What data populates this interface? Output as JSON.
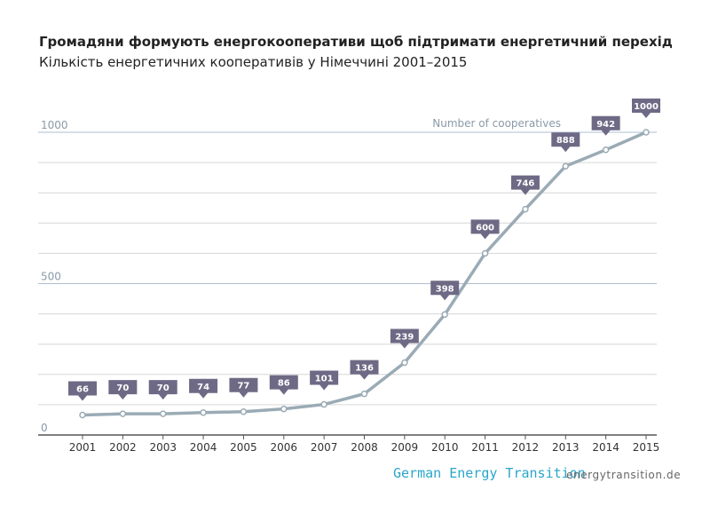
{
  "header": {
    "title": "Громадяни формують енергокооперативи щоб підтримати енергетичний перехід",
    "subtitle": "Кількість енергетичних кооперативів у Німеччині 2001–2015"
  },
  "footer": {
    "brand": "German Energy Transition",
    "site": "energytransition.de"
  },
  "colors": {
    "line": "#9aabb5",
    "label_bg": "#6e6a85",
    "major_grid": "#aebfd0",
    "minor_grid": "#d6d6d6",
    "axis_text": "#8a9aa8"
  },
  "chart_data": {
    "type": "line",
    "title": "Громадяни формують енергокооперативи щоб підтримати енергетичний перехід",
    "subtitle": "Кількість енергетичних кооперативів у Німеччині 2001–2015",
    "categories": [
      "2001",
      "2002",
      "2003",
      "2004",
      "2005",
      "2006",
      "2007",
      "2008",
      "2009",
      "2010",
      "2011",
      "2012",
      "2013",
      "2014",
      "2015"
    ],
    "series": [
      {
        "name": "Number of cooperatives",
        "values": [
          66,
          70,
          70,
          74,
          77,
          86,
          101,
          136,
          239,
          398,
          600,
          746,
          888,
          942,
          1000
        ]
      }
    ],
    "ylim": [
      0,
      1000
    ],
    "yticks": [
      0,
      500,
      1000
    ],
    "ytick_labels": [
      "0",
      "500",
      "1000"
    ],
    "grid": true,
    "legend": "top-right",
    "data_labels": true
  }
}
